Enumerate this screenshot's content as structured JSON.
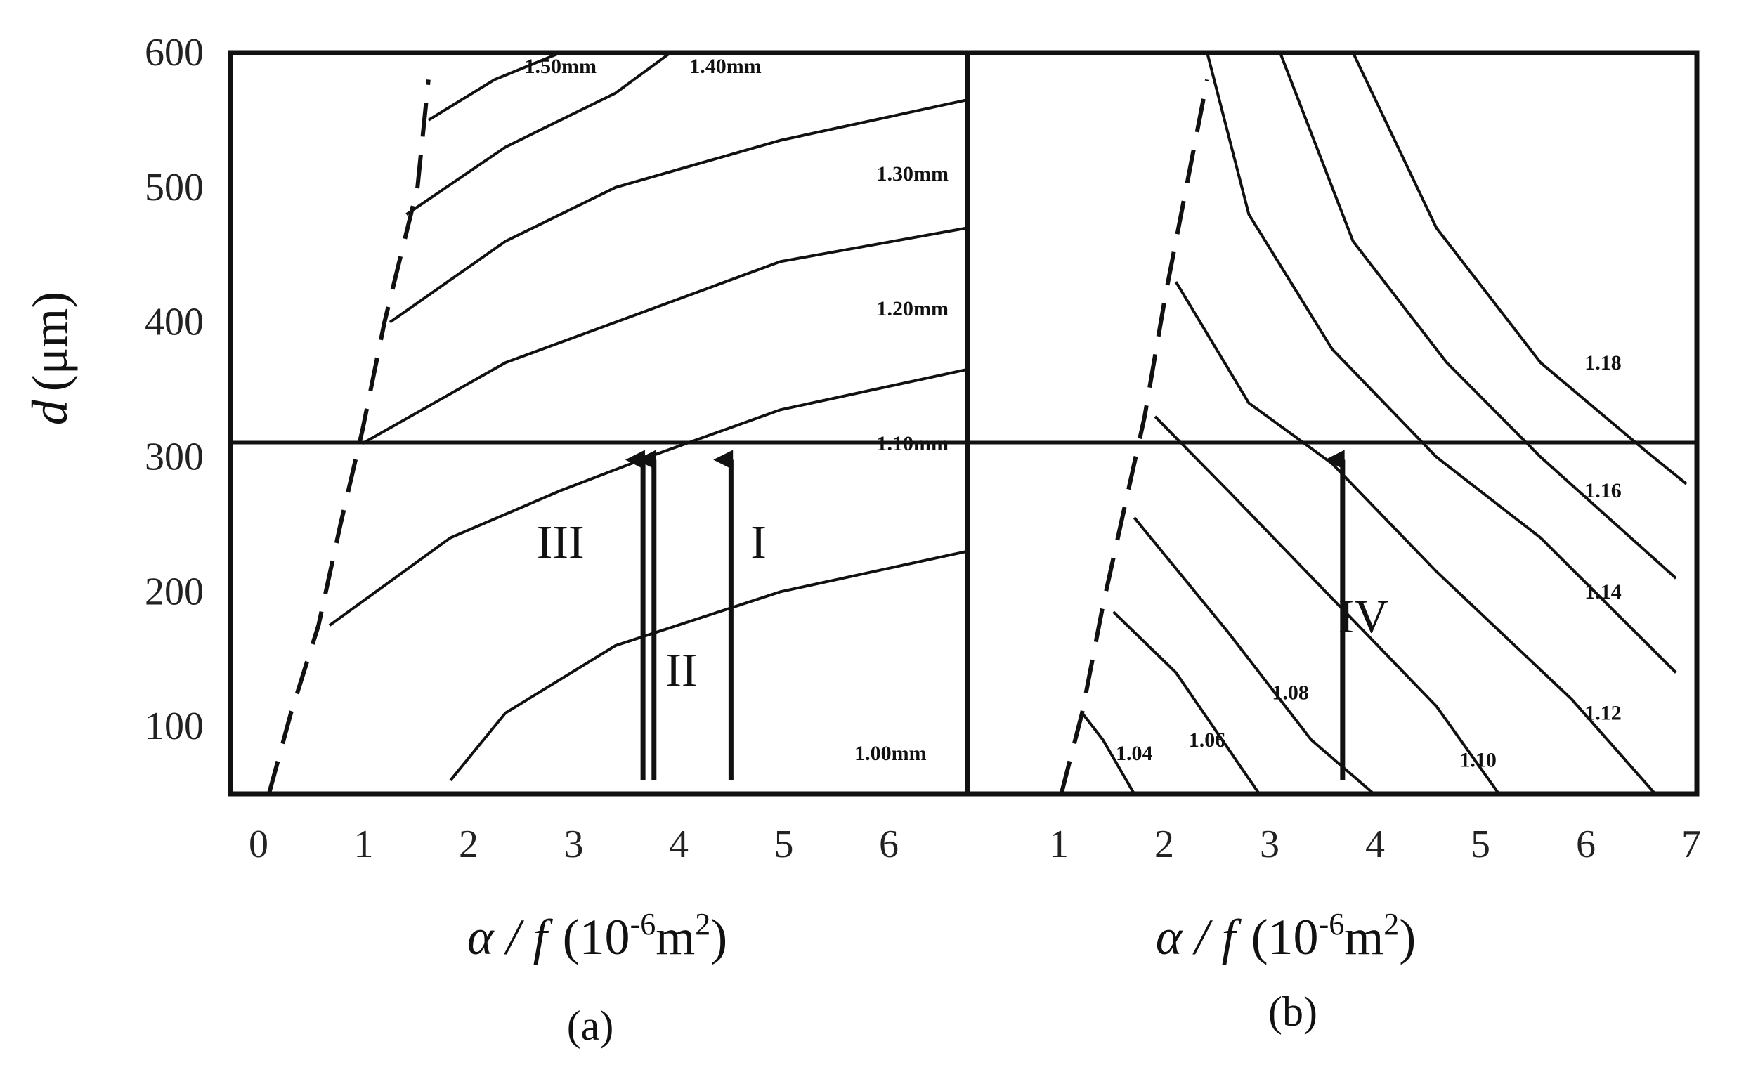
{
  "figure": {
    "panel_labels": [
      "(a)",
      "(b)"
    ],
    "ylabel_var": "d",
    "ylabel_unit": "(μm)",
    "xlabel_var": "α / f",
    "xlabel_unit_base": "(10",
    "xlabel_unit_exp": "-6",
    "xlabel_unit_mid": "m",
    "xlabel_unit_exp2": "2",
    "xlabel_unit_close": ")"
  },
  "chart_data": [
    {
      "type": "line",
      "panel": "(a)",
      "xlabel": "α / f (10⁻⁶m²)",
      "ylabel": "d (μm)",
      "xlim": [
        0,
        6.7
      ],
      "ylim": [
        50,
        600
      ],
      "xticks": [
        "0",
        "1",
        "2",
        "3",
        "4",
        "5",
        "6"
      ],
      "yticks": [
        "100",
        "200",
        "300",
        "400",
        "500",
        "600"
      ],
      "reference_line_y": 300,
      "dashed_boundary": [
        [
          0.35,
          50
        ],
        [
          0.55,
          110
        ],
        [
          0.8,
          175
        ],
        [
          1.0,
          250
        ],
        [
          1.2,
          320
        ],
        [
          1.4,
          400
        ],
        [
          1.7,
          500
        ],
        [
          1.8,
          580
        ]
      ],
      "series": [
        {
          "points": [
            [
              1.8,
              550
            ],
            [
              2.4,
              580
            ],
            [
              3.0,
              600
            ]
          ]
        },
        {
          "points": [
            [
              1.6,
              480
            ],
            [
              2.5,
              530
            ],
            [
              3.5,
              570
            ],
            [
              4.0,
              600
            ]
          ]
        },
        {
          "points": [
            [
              1.45,
              400
            ],
            [
              2.5,
              460
            ],
            [
              3.5,
              500
            ],
            [
              5.0,
              535
            ],
            [
              6.7,
              565
            ]
          ]
        },
        {
          "points": [
            [
              1.2,
              310
            ],
            [
              2.5,
              370
            ],
            [
              4.0,
              415
            ],
            [
              5.0,
              445
            ],
            [
              6.7,
              470
            ]
          ]
        },
        {
          "points": [
            [
              0.9,
              175
            ],
            [
              2.0,
              240
            ],
            [
              3.0,
              275
            ],
            [
              3.8,
              300
            ],
            [
              5.0,
              335
            ],
            [
              6.7,
              365
            ]
          ]
        },
        {
          "points": [
            [
              2.0,
              60
            ],
            [
              2.5,
              110
            ],
            [
              3.5,
              160
            ],
            [
              5.0,
              200
            ],
            [
              6.7,
              230
            ]
          ]
        }
      ],
      "contour_labels": [
        "1.50mm",
        "1.40mm",
        "1.30mm",
        "1.20mm",
        "1.10mm",
        "1.00mm"
      ],
      "contour_label_positions": [
        [
          3.0,
          585
        ],
        [
          4.5,
          585
        ],
        [
          6.2,
          505
        ],
        [
          6.2,
          405
        ],
        [
          6.2,
          305
        ],
        [
          6.0,
          75
        ]
      ],
      "arrows": [
        {
          "label": "III",
          "x": 3.75,
          "from": 60,
          "to": 300
        },
        {
          "label": "II",
          "x": 3.85,
          "from": 60,
          "to": 300
        },
        {
          "label": "I",
          "x": 4.55,
          "from": 60,
          "to": 300
        }
      ],
      "arrow_label_positions": [
        [
          3.0,
          225
        ],
        [
          4.1,
          130
        ],
        [
          4.8,
          225
        ]
      ]
    },
    {
      "type": "line",
      "panel": "(b)",
      "xlabel": "α / f (10⁻⁶m²)",
      "xlim": [
        0,
        7
      ],
      "ylim": [
        50,
        600
      ],
      "xticks": [
        "1",
        "2",
        "3",
        "4",
        "5",
        "6",
        "7"
      ],
      "reference_line_y": 300,
      "dashed_boundary": [
        [
          0.9,
          50
        ],
        [
          1.1,
          110
        ],
        [
          1.3,
          190
        ],
        [
          1.5,
          260
        ],
        [
          1.7,
          330
        ],
        [
          1.9,
          420
        ],
        [
          2.3,
          580
        ]
      ],
      "series": [
        {
          "points": [
            [
              1.1,
              110
            ],
            [
              1.3,
              90
            ],
            [
              1.6,
              50
            ]
          ]
        },
        {
          "points": [
            [
              1.4,
              185
            ],
            [
              2.0,
              140
            ],
            [
              2.8,
              50
            ]
          ]
        },
        {
          "points": [
            [
              1.6,
              255
            ],
            [
              2.5,
              170
            ],
            [
              3.3,
              90
            ],
            [
              3.9,
              50
            ]
          ]
        },
        {
          "points": [
            [
              1.8,
              330
            ],
            [
              2.5,
              275
            ],
            [
              3.5,
              195
            ],
            [
              4.5,
              115
            ],
            [
              5.1,
              50
            ]
          ]
        },
        {
          "points": [
            [
              2.0,
              430
            ],
            [
              2.7,
              340
            ],
            [
              3.5,
              295
            ],
            [
              4.5,
              215
            ],
            [
              5.8,
              120
            ],
            [
              6.6,
              50
            ]
          ]
        },
        {
          "points": [
            [
              2.3,
              600
            ],
            [
              2.7,
              480
            ],
            [
              3.5,
              380
            ],
            [
              4.5,
              300
            ],
            [
              5.5,
              240
            ],
            [
              6.8,
              140
            ]
          ]
        },
        {
          "points": [
            [
              3.0,
              600
            ],
            [
              3.7,
              460
            ],
            [
              4.6,
              370
            ],
            [
              5.5,
              300
            ],
            [
              6.8,
              210
            ]
          ]
        },
        {
          "points": [
            [
              3.7,
              600
            ],
            [
              4.5,
              470
            ],
            [
              5.5,
              370
            ],
            [
              6.5,
              305
            ],
            [
              6.9,
              280
            ]
          ]
        }
      ],
      "contour_labels": [
        "1.04",
        "1.06",
        "1.08",
        "1.10",
        "1.12",
        "1.14",
        "1.16",
        "1.18"
      ],
      "contour_label_positions": [
        [
          1.6,
          75
        ],
        [
          2.3,
          85
        ],
        [
          3.1,
          120
        ],
        [
          4.9,
          70
        ],
        [
          6.1,
          105
        ],
        [
          6.1,
          195
        ],
        [
          6.1,
          270
        ],
        [
          6.1,
          365
        ]
      ],
      "arrows": [
        {
          "label": "IV",
          "x": 3.6,
          "from": 60,
          "to": 300
        }
      ],
      "arrow_label_positions": [
        [
          3.8,
          170
        ]
      ]
    }
  ]
}
